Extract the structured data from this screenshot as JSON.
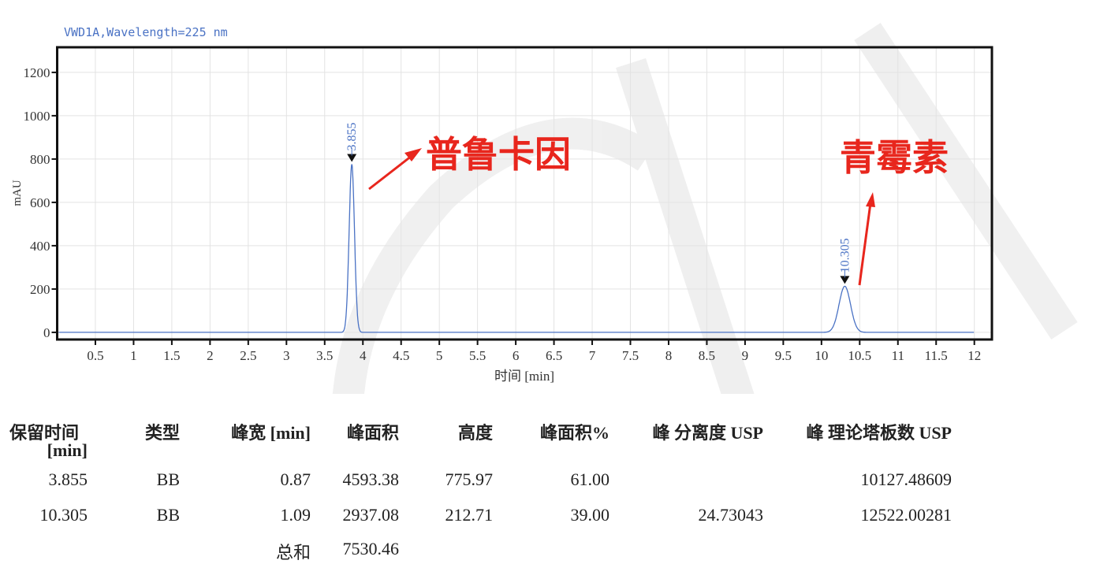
{
  "chart_data": {
    "type": "line",
    "title": "VWD1A,Wavelength=225 nm",
    "xlabel": "时间 [min]",
    "ylabel": "mAU",
    "xlim": [
      0,
      12.23
    ],
    "ylim": [
      -33,
      1316
    ],
    "xticks": [
      "0.5",
      "1",
      "1.5",
      "2",
      "2.5",
      "3",
      "3.5",
      "4",
      "4.5",
      "5",
      "5.5",
      "6",
      "6.5",
      "7",
      "7.5",
      "8",
      "8.5",
      "9",
      "9.5",
      "10",
      "10.5",
      "11",
      "11.5",
      "12"
    ],
    "yticks": [
      "0",
      "200",
      "400",
      "600",
      "800",
      "1000",
      "1200"
    ],
    "grid": true,
    "series_color": "#4a72c4",
    "baseline": 0,
    "x_end": 12,
    "peaks": [
      {
        "rt": 3.855,
        "height": 775.97,
        "label": "3.855"
      },
      {
        "rt": 10.305,
        "height": 212.71,
        "label": "10.305"
      }
    ],
    "annotations": [
      {
        "text": "普鲁卡因",
        "color": "#e8261d"
      },
      {
        "text": "青霉素",
        "color": "#e8261d"
      }
    ]
  },
  "table": {
    "headers": [
      "保留时间",
      "类型",
      "峰宽 [min]",
      "峰面积",
      "高度",
      "峰面积%",
      "峰 分离度 USP",
      "峰 理论塔板数 USP"
    ],
    "header_sub": "[min]",
    "rows": [
      [
        "3.855",
        "BB",
        "0.87",
        "4593.38",
        "775.97",
        "61.00",
        "",
        "10127.48609"
      ],
      [
        "10.305",
        "BB",
        "1.09",
        "2937.08",
        "212.71",
        "39.00",
        "24.73043",
        "12522.00281"
      ]
    ],
    "total_label": "总和",
    "total_value": "7530.46"
  }
}
